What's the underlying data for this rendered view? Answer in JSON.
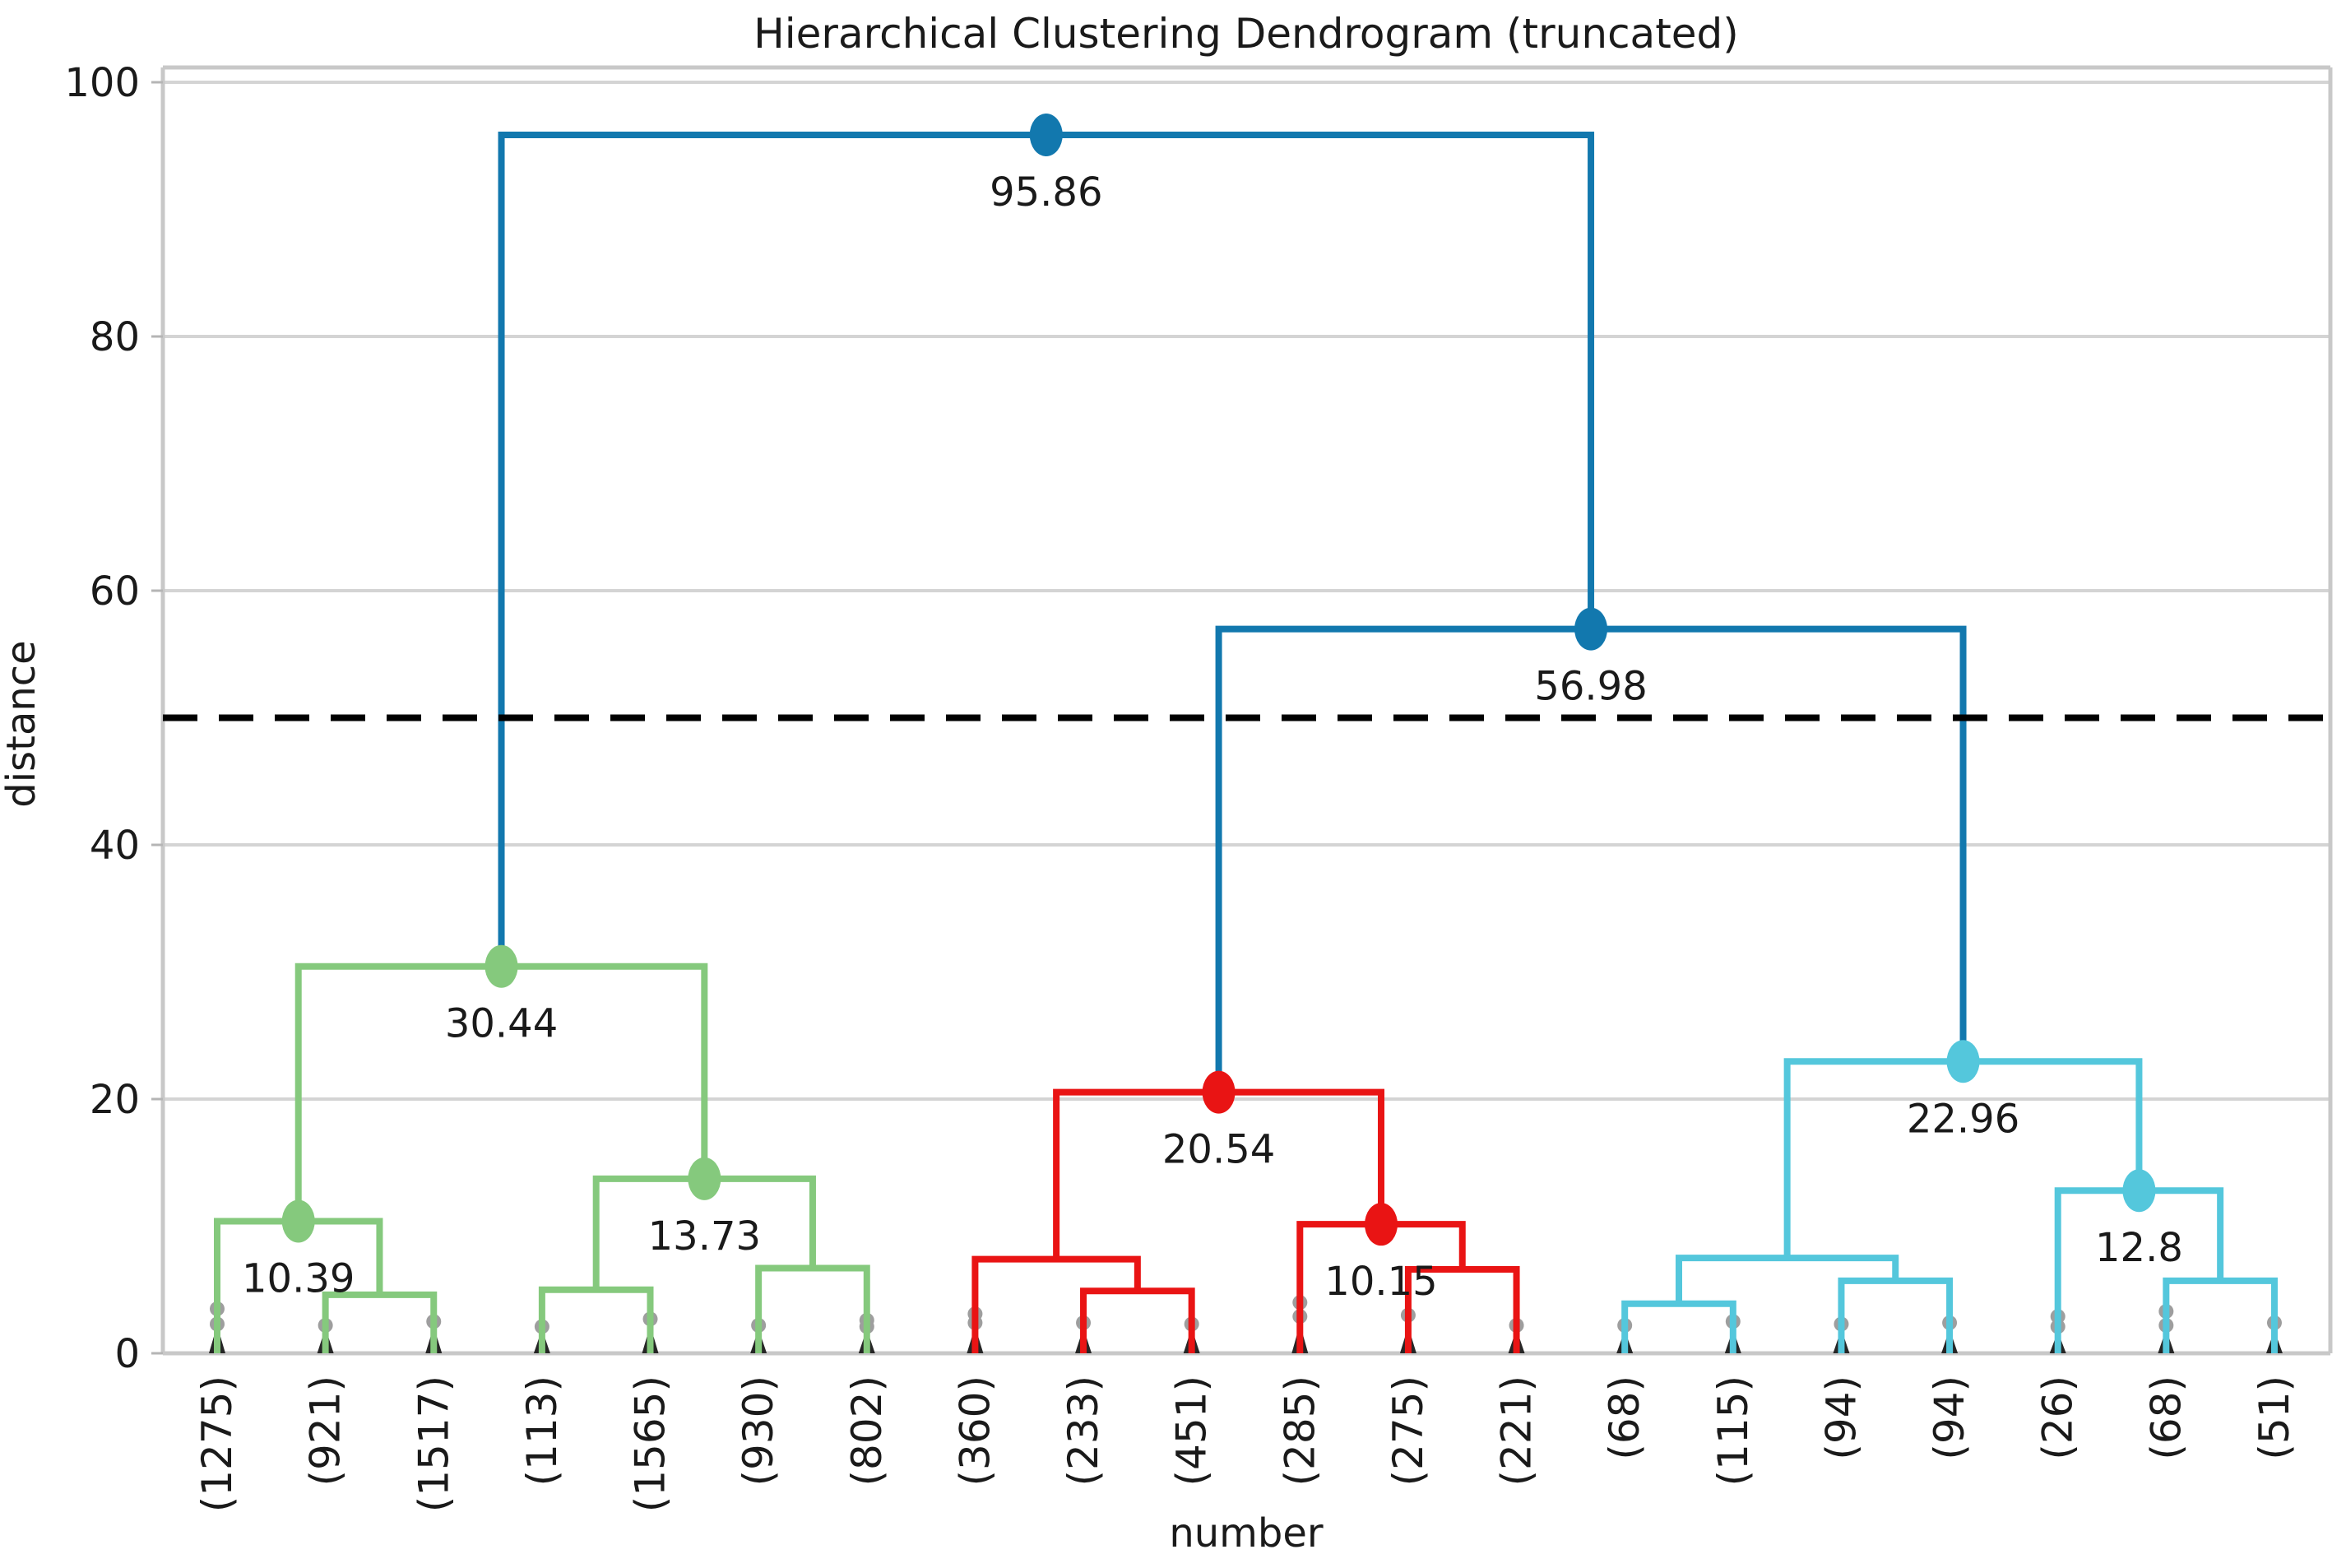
{
  "chart_data": {
    "type": "dendrogram",
    "title": "Hierarchical Clustering Dendrogram (truncated)",
    "xlabel": "number",
    "ylabel": "distance",
    "ylim": [
      0,
      101.5
    ],
    "yticks": [
      0,
      20,
      40,
      60,
      80,
      100
    ],
    "grid": "horizontal",
    "legend": "none",
    "threshold_line": {
      "value": 50,
      "style": "dashed",
      "color": "#000000"
    },
    "colors": {
      "above_threshold": "#1278ae",
      "cluster1": "#85c97d",
      "cluster2": "#e91414",
      "cluster3": "#54c7dc",
      "grid": "#d4d4d4",
      "spine": "#c8c8c8",
      "text": "#1a1a1a",
      "tick_text": "#262626",
      "contraction_mark": "#262626",
      "contraction_dot": "#9e9e9e"
    },
    "leaves": [
      {
        "label": "(1275)",
        "cluster": "cluster1",
        "wedge": 2.2,
        "contraction_dots": [
          3.5,
          2.3
        ]
      },
      {
        "label": "(921)",
        "cluster": "cluster1",
        "wedge": 2.0,
        "contraction_dots": [
          2.2
        ]
      },
      {
        "label": "(1517)",
        "cluster": "cluster1",
        "wedge": 2.1,
        "contraction_dots": [
          2.5
        ]
      },
      {
        "label": "(113)",
        "cluster": "cluster1",
        "wedge": 1.9,
        "contraction_dots": [
          2.1
        ]
      },
      {
        "label": "(1565)",
        "cluster": "cluster1",
        "wedge": 2.2,
        "contraction_dots": [
          2.7
        ]
      },
      {
        "label": "(930)",
        "cluster": "cluster1",
        "wedge": 1.9,
        "contraction_dots": [
          2.2
        ]
      },
      {
        "label": "(802)",
        "cluster": "cluster1",
        "wedge": 1.9,
        "contraction_dots": [
          2.6,
          2.1
        ]
      },
      {
        "label": "(360)",
        "cluster": "cluster2",
        "wedge": 2.1,
        "contraction_dots": [
          3.1,
          2.4
        ]
      },
      {
        "label": "(233)",
        "cluster": "cluster2",
        "wedge": 2.0,
        "contraction_dots": [
          2.4
        ]
      },
      {
        "label": "(451)",
        "cluster": "cluster2",
        "wedge": 2.0,
        "contraction_dots": [
          2.3
        ]
      },
      {
        "label": "(285)",
        "cluster": "cluster2",
        "wedge": 2.3,
        "contraction_dots": [
          4.0,
          2.9
        ]
      },
      {
        "label": "(275)",
        "cluster": "cluster2",
        "wedge": 2.1,
        "contraction_dots": [
          3.0
        ]
      },
      {
        "label": "(221)",
        "cluster": "cluster2",
        "wedge": 1.9,
        "contraction_dots": [
          2.2
        ]
      },
      {
        "label": "(68)",
        "cluster": "cluster3",
        "wedge": 1.8,
        "contraction_dots": [
          2.2
        ]
      },
      {
        "label": "(115)",
        "cluster": "cluster3",
        "wedge": 1.9,
        "contraction_dots": [
          2.5
        ]
      },
      {
        "label": "(94)",
        "cluster": "cluster3",
        "wedge": 1.9,
        "contraction_dots": [
          2.3
        ]
      },
      {
        "label": "(94)",
        "cluster": "cluster3",
        "wedge": 1.9,
        "contraction_dots": [
          2.4
        ]
      },
      {
        "label": "(26)",
        "cluster": "cluster3",
        "wedge": 1.7,
        "contraction_dots": [
          2.9,
          2.1
        ]
      },
      {
        "label": "(68)",
        "cluster": "cluster3",
        "wedge": 1.9,
        "contraction_dots": [
          3.3,
          2.2
        ]
      },
      {
        "label": "(51)",
        "cluster": "cluster3",
        "wedge": 1.8,
        "contraction_dots": [
          2.4
        ]
      }
    ],
    "merges": [
      {
        "id": "m_a",
        "children": [
          1,
          2
        ],
        "height": 4.6,
        "color": "cluster1"
      },
      {
        "id": "m_b",
        "children": [
          0,
          "m_a"
        ],
        "height": 10.39,
        "color": "cluster1",
        "label": "10.39"
      },
      {
        "id": "m_c",
        "children": [
          3,
          4
        ],
        "height": 5.0,
        "color": "cluster1"
      },
      {
        "id": "m_d",
        "children": [
          5,
          6
        ],
        "height": 6.7,
        "color": "cluster1"
      },
      {
        "id": "m_e",
        "children": [
          "m_c",
          "m_d"
        ],
        "height": 13.73,
        "color": "cluster1",
        "label": "13.73"
      },
      {
        "id": "m_f",
        "children": [
          "m_b",
          "m_e"
        ],
        "height": 30.44,
        "color": "cluster1",
        "label": "30.44"
      },
      {
        "id": "m_g",
        "children": [
          8,
          9
        ],
        "height": 4.9,
        "color": "cluster2"
      },
      {
        "id": "m_h",
        "children": [
          7,
          "m_g"
        ],
        "height": 7.4,
        "color": "cluster2"
      },
      {
        "id": "m_i",
        "children": [
          11,
          12
        ],
        "height": 6.6,
        "color": "cluster2"
      },
      {
        "id": "m_j",
        "children": [
          10,
          "m_i"
        ],
        "height": 10.15,
        "color": "cluster2",
        "label": "10.15"
      },
      {
        "id": "m_k",
        "children": [
          "m_h",
          "m_j"
        ],
        "height": 20.54,
        "color": "cluster2",
        "label": "20.54"
      },
      {
        "id": "m_l",
        "children": [
          13,
          14
        ],
        "height": 3.9,
        "color": "cluster3"
      },
      {
        "id": "m_m",
        "children": [
          15,
          16
        ],
        "height": 5.7,
        "color": "cluster3"
      },
      {
        "id": "m_n",
        "children": [
          "m_l",
          "m_m"
        ],
        "height": 7.5,
        "color": "cluster3"
      },
      {
        "id": "m_o",
        "children": [
          18,
          19
        ],
        "height": 5.7,
        "color": "cluster3"
      },
      {
        "id": "m_p",
        "children": [
          17,
          "m_o"
        ],
        "height": 12.8,
        "color": "cluster3",
        "label": "12.8"
      },
      {
        "id": "m_q",
        "children": [
          "m_n",
          "m_p"
        ],
        "height": 22.96,
        "color": "cluster3",
        "label": "22.96"
      },
      {
        "id": "m_s",
        "children": [
          "m_k",
          "m_q"
        ],
        "height": 56.98,
        "color": "above_threshold",
        "label": "56.98"
      },
      {
        "id": "m_r",
        "children": [
          "m_f",
          "m_s"
        ],
        "height": 95.86,
        "color": "above_threshold",
        "label": "95.86"
      }
    ]
  }
}
